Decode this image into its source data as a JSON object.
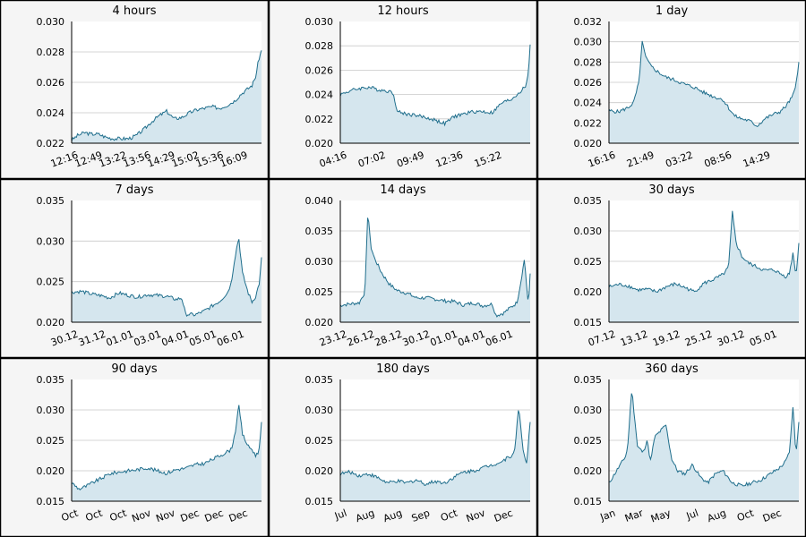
{
  "colors": {
    "line": "#1f6e8c",
    "fill": "#d5e6ee",
    "panel_bg": "#f5f5f5",
    "plot_bg": "#ffffff",
    "grid": "#c9c9c9",
    "border": "#000000",
    "text": "#000000"
  },
  "chart_data": [
    {
      "type": "area",
      "title": "4 hours",
      "ylim": [
        0.022,
        0.03
      ],
      "yticks": [
        "0.022",
        "0.024",
        "0.026",
        "0.028",
        "0.030"
      ],
      "xtick_labels": [
        "12:16",
        "12:49",
        "13:22",
        "13:56",
        "14:29",
        "15:02",
        "15:36",
        "16:09"
      ],
      "grid": true,
      "x": [
        0,
        0.03,
        0.07,
        0.1,
        0.14,
        0.18,
        0.22,
        0.26,
        0.3,
        0.34,
        0.38,
        0.42,
        0.46,
        0.5,
        0.54,
        0.58,
        0.62,
        0.66,
        0.7,
        0.74,
        0.78,
        0.82,
        0.86,
        0.89,
        0.92,
        0.95,
        0.97,
        0.985,
        1
      ],
      "y": [
        0.0222,
        0.0225,
        0.0227,
        0.0226,
        0.0226,
        0.0224,
        0.0223,
        0.0223,
        0.0223,
        0.0225,
        0.0229,
        0.0234,
        0.0238,
        0.0241,
        0.0236,
        0.0237,
        0.024,
        0.0242,
        0.0243,
        0.0244,
        0.0243,
        0.0245,
        0.0248,
        0.0252,
        0.0255,
        0.0258,
        0.0264,
        0.0275,
        0.0281
      ]
    },
    {
      "type": "area",
      "title": "12 hours",
      "ylim": [
        0.02,
        0.03
      ],
      "yticks": [
        "0.020",
        "0.022",
        "0.024",
        "0.026",
        "0.028",
        "0.030"
      ],
      "xtick_labels": [
        "04:16",
        "07:02",
        "09:49",
        "12:36",
        "15:22"
      ],
      "grid": true,
      "x": [
        0,
        0.05,
        0.1,
        0.15,
        0.2,
        0.25,
        0.28,
        0.3,
        0.35,
        0.4,
        0.45,
        0.5,
        0.55,
        0.6,
        0.65,
        0.7,
        0.75,
        0.8,
        0.85,
        0.9,
        0.93,
        0.96,
        0.98,
        0.99,
        1
      ],
      "y": [
        0.024,
        0.0243,
        0.0245,
        0.0246,
        0.0244,
        0.0243,
        0.0241,
        0.0226,
        0.0224,
        0.0223,
        0.0221,
        0.0219,
        0.0216,
        0.0222,
        0.0224,
        0.0226,
        0.0226,
        0.0225,
        0.0233,
        0.0236,
        0.024,
        0.0244,
        0.0248,
        0.0257,
        0.0281
      ]
    },
    {
      "type": "area",
      "title": "1 day",
      "ylim": [
        0.02,
        0.032
      ],
      "yticks": [
        "0.020",
        "0.022",
        "0.024",
        "0.026",
        "0.028",
        "0.030",
        "0.032"
      ],
      "xtick_labels": [
        "16:16",
        "21:49",
        "03:22",
        "08:56",
        "14:29"
      ],
      "grid": true,
      "x": [
        0,
        0.05,
        0.1,
        0.13,
        0.16,
        0.175,
        0.19,
        0.22,
        0.26,
        0.3,
        0.35,
        0.4,
        0.45,
        0.5,
        0.55,
        0.6,
        0.63,
        0.66,
        0.7,
        0.74,
        0.78,
        0.82,
        0.86,
        0.9,
        0.93,
        0.96,
        0.98,
        1
      ],
      "y": [
        0.0232,
        0.0231,
        0.0235,
        0.024,
        0.0262,
        0.0302,
        0.0286,
        0.0276,
        0.027,
        0.0265,
        0.0262,
        0.0258,
        0.0255,
        0.025,
        0.0246,
        0.0243,
        0.0235,
        0.0227,
        0.0224,
        0.0222,
        0.0217,
        0.0224,
        0.0228,
        0.0231,
        0.0236,
        0.0244,
        0.0252,
        0.028
      ]
    },
    {
      "type": "area",
      "title": "7 days",
      "ylim": [
        0.02,
        0.035
      ],
      "yticks": [
        "0.020",
        "0.025",
        "0.030",
        "0.035"
      ],
      "xtick_labels": [
        "30.12",
        "31.12",
        "01.01",
        "03.01",
        "04.01",
        "05.01",
        "06.01"
      ],
      "grid": true,
      "x": [
        0,
        0.05,
        0.1,
        0.15,
        0.2,
        0.25,
        0.3,
        0.35,
        0.4,
        0.45,
        0.5,
        0.55,
        0.58,
        0.6,
        0.65,
        0.7,
        0.74,
        0.78,
        0.82,
        0.84,
        0.86,
        0.88,
        0.9,
        0.93,
        0.95,
        0.97,
        0.99,
        1
      ],
      "y": [
        0.0237,
        0.0238,
        0.0235,
        0.0233,
        0.023,
        0.0236,
        0.0233,
        0.0231,
        0.0234,
        0.0233,
        0.0232,
        0.0228,
        0.023,
        0.021,
        0.0209,
        0.0214,
        0.022,
        0.0226,
        0.0236,
        0.0248,
        0.028,
        0.0305,
        0.026,
        0.0236,
        0.0225,
        0.0232,
        0.025,
        0.028
      ]
    },
    {
      "type": "area",
      "title": "14 days",
      "ylim": [
        0.02,
        0.04
      ],
      "yticks": [
        "0.020",
        "0.025",
        "0.030",
        "0.035",
        "0.040"
      ],
      "xtick_labels": [
        "23.12",
        "26.12",
        "28.12",
        "30.12",
        "01.01",
        "04.01",
        "06.01"
      ],
      "grid": true,
      "x": [
        0,
        0.05,
        0.1,
        0.13,
        0.145,
        0.16,
        0.18,
        0.22,
        0.26,
        0.3,
        0.35,
        0.4,
        0.45,
        0.5,
        0.55,
        0.6,
        0.65,
        0.7,
        0.75,
        0.8,
        0.82,
        0.86,
        0.9,
        0.93,
        0.95,
        0.97,
        0.99,
        1
      ],
      "y": [
        0.0228,
        0.023,
        0.0232,
        0.025,
        0.0385,
        0.0325,
        0.0305,
        0.028,
        0.0262,
        0.0252,
        0.0248,
        0.024,
        0.024,
        0.0238,
        0.0235,
        0.0234,
        0.0228,
        0.0232,
        0.0227,
        0.023,
        0.0211,
        0.0215,
        0.0225,
        0.0232,
        0.0265,
        0.0305,
        0.0225,
        0.028
      ]
    },
    {
      "type": "area",
      "title": "30 days",
      "ylim": [
        0.015,
        0.035
      ],
      "yticks": [
        "0.015",
        "0.020",
        "0.025",
        "0.030",
        "0.035"
      ],
      "xtick_labels": [
        "07.12",
        "13.12",
        "19.12",
        "25.12",
        "30.12",
        "05.01"
      ],
      "grid": true,
      "x": [
        0,
        0.05,
        0.1,
        0.15,
        0.2,
        0.25,
        0.3,
        0.35,
        0.4,
        0.45,
        0.5,
        0.55,
        0.6,
        0.63,
        0.65,
        0.67,
        0.7,
        0.73,
        0.77,
        0.82,
        0.87,
        0.9,
        0.93,
        0.95,
        0.97,
        0.985,
        1
      ],
      "y": [
        0.0208,
        0.0212,
        0.021,
        0.0203,
        0.0204,
        0.02,
        0.0208,
        0.0213,
        0.0207,
        0.02,
        0.0214,
        0.022,
        0.0228,
        0.024,
        0.033,
        0.028,
        0.0258,
        0.0248,
        0.0242,
        0.0235,
        0.0236,
        0.023,
        0.0225,
        0.023,
        0.0265,
        0.0225,
        0.028
      ]
    },
    {
      "type": "area",
      "title": "90 days",
      "ylim": [
        0.015,
        0.035
      ],
      "yticks": [
        "0.015",
        "0.020",
        "0.025",
        "0.030",
        "0.035"
      ],
      "xtick_labels": [
        "Oct",
        "Oct",
        "Oct",
        "Nov",
        "Nov",
        "Dec",
        "Dec",
        "Dec"
      ],
      "grid": true,
      "x": [
        0,
        0.04,
        0.08,
        0.12,
        0.16,
        0.2,
        0.25,
        0.3,
        0.35,
        0.4,
        0.45,
        0.5,
        0.55,
        0.6,
        0.65,
        0.7,
        0.75,
        0.8,
        0.84,
        0.86,
        0.88,
        0.9,
        0.93,
        0.95,
        0.97,
        0.985,
        1
      ],
      "y": [
        0.018,
        0.017,
        0.0175,
        0.0182,
        0.0188,
        0.0195,
        0.0198,
        0.02,
        0.0202,
        0.0205,
        0.02,
        0.0196,
        0.0202,
        0.0204,
        0.021,
        0.0212,
        0.022,
        0.0228,
        0.0235,
        0.026,
        0.0308,
        0.026,
        0.024,
        0.0235,
        0.0225,
        0.023,
        0.028
      ]
    },
    {
      "type": "area",
      "title": "180 days",
      "ylim": [
        0.015,
        0.035
      ],
      "yticks": [
        "0.015",
        "0.020",
        "0.025",
        "0.030",
        "0.035"
      ],
      "xtick_labels": [
        "Jul",
        "Aug",
        "Aug",
        "Sep",
        "Oct",
        "Nov",
        "Dec"
      ],
      "grid": true,
      "x": [
        0,
        0.05,
        0.1,
        0.15,
        0.2,
        0.25,
        0.3,
        0.35,
        0.4,
        0.45,
        0.5,
        0.55,
        0.6,
        0.65,
        0.7,
        0.75,
        0.8,
        0.85,
        0.9,
        0.92,
        0.94,
        0.96,
        0.98,
        1
      ],
      "y": [
        0.0195,
        0.0198,
        0.0192,
        0.0195,
        0.0188,
        0.018,
        0.0183,
        0.018,
        0.0185,
        0.0178,
        0.0183,
        0.018,
        0.019,
        0.0198,
        0.02,
        0.0205,
        0.021,
        0.0215,
        0.0225,
        0.0235,
        0.0308,
        0.024,
        0.021,
        0.028
      ]
    },
    {
      "type": "area",
      "title": "360 days",
      "ylim": [
        0.015,
        0.035
      ],
      "yticks": [
        "0.015",
        "0.020",
        "0.025",
        "0.030",
        "0.035"
      ],
      "xtick_labels": [
        "Jan",
        "Mar",
        "May",
        "Jul",
        "Aug",
        "Oct",
        "Dec"
      ],
      "grid": true,
      "x": [
        0,
        0.03,
        0.06,
        0.09,
        0.1,
        0.12,
        0.15,
        0.18,
        0.2,
        0.22,
        0.24,
        0.27,
        0.3,
        0.33,
        0.36,
        0.4,
        0.44,
        0.48,
        0.52,
        0.56,
        0.6,
        0.65,
        0.7,
        0.75,
        0.8,
        0.85,
        0.9,
        0.93,
        0.95,
        0.97,
        0.985,
        1
      ],
      "y": [
        0.018,
        0.0195,
        0.021,
        0.0225,
        0.0245,
        0.0335,
        0.024,
        0.023,
        0.025,
        0.0215,
        0.0255,
        0.0265,
        0.0275,
        0.022,
        0.02,
        0.0195,
        0.021,
        0.019,
        0.018,
        0.0195,
        0.02,
        0.018,
        0.0175,
        0.018,
        0.0185,
        0.0195,
        0.0205,
        0.0215,
        0.023,
        0.0308,
        0.0225,
        0.028
      ]
    }
  ]
}
